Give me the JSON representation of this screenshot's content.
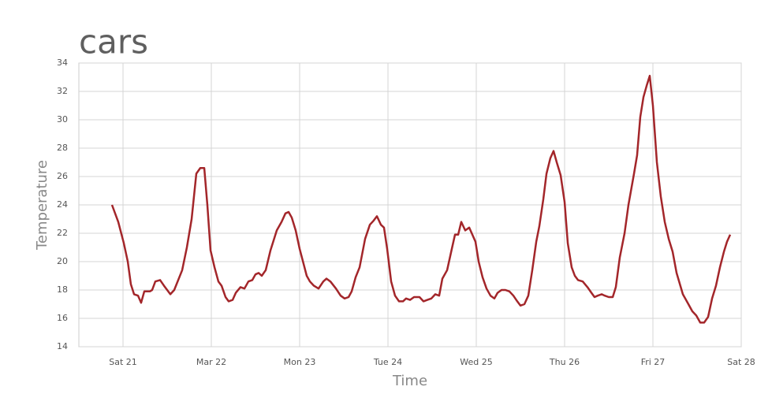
{
  "chart_data": {
    "type": "line",
    "title": "cars",
    "xlabel": "Time",
    "ylabel": "Temperature",
    "color": "#a3262a",
    "grid": true,
    "xlim": [
      20.5,
      28
    ],
    "ylim": [
      14,
      34
    ],
    "xticks": [
      {
        "value": 21,
        "label": "Sat 21"
      },
      {
        "value": 22,
        "label": "Mar 22"
      },
      {
        "value": 23,
        "label": "Mon 23"
      },
      {
        "value": 24,
        "label": "Tue 24"
      },
      {
        "value": 25,
        "label": "Wed 25"
      },
      {
        "value": 26,
        "label": "Thu 26"
      },
      {
        "value": 27,
        "label": "Fri 27"
      },
      {
        "value": 28,
        "label": "Sat 28"
      }
    ],
    "yticks": [
      14,
      16,
      18,
      20,
      22,
      24,
      26,
      28,
      30,
      32,
      34
    ],
    "x": [
      20.875,
      20.946,
      21.009,
      21.054,
      21.089,
      21.125,
      21.17,
      21.205,
      21.241,
      21.304,
      21.33,
      21.366,
      21.42,
      21.464,
      21.536,
      21.58,
      21.67,
      21.723,
      21.777,
      21.83,
      21.875,
      21.92,
      21.955,
      21.991,
      22.036,
      22.08,
      22.116,
      22.161,
      22.196,
      22.241,
      22.277,
      22.33,
      22.375,
      22.42,
      22.464,
      22.5,
      22.536,
      22.571,
      22.616,
      22.67,
      22.741,
      22.795,
      22.839,
      22.875,
      22.911,
      22.955,
      23.0,
      23.08,
      23.116,
      23.161,
      23.214,
      23.268,
      23.304,
      23.348,
      23.411,
      23.464,
      23.509,
      23.554,
      23.589,
      23.634,
      23.679,
      23.741,
      23.795,
      23.839,
      23.875,
      23.92,
      23.955,
      23.991,
      24.036,
      24.08,
      24.125,
      24.17,
      24.205,
      24.25,
      24.295,
      24.357,
      24.402,
      24.446,
      24.491,
      24.536,
      24.58,
      24.616,
      24.67,
      24.723,
      24.759,
      24.795,
      24.83,
      24.875,
      24.92,
      24.991,
      25.027,
      25.071,
      25.116,
      25.161,
      25.205,
      25.241,
      25.286,
      25.33,
      25.375,
      25.42,
      25.464,
      25.5,
      25.545,
      25.589,
      25.634,
      25.679,
      25.714,
      25.759,
      25.795,
      25.839,
      25.875,
      25.911,
      25.955,
      26.0,
      26.036,
      26.08,
      26.116,
      26.152,
      26.205,
      26.259,
      26.304,
      26.339,
      26.375,
      26.42,
      26.455,
      26.5,
      26.545,
      26.58,
      26.625,
      26.679,
      26.723,
      26.786,
      26.821,
      26.857,
      26.893,
      26.929,
      26.964,
      27.0,
      27.045,
      27.089,
      27.134,
      27.179,
      27.223,
      27.268,
      27.339,
      27.402,
      27.446,
      27.491,
      27.536,
      27.58,
      27.625,
      27.67,
      27.714,
      27.759,
      27.804,
      27.839,
      27.875
    ],
    "values": [
      24.0,
      22.8,
      21.3,
      20.0,
      18.4,
      17.7,
      17.6,
      17.1,
      17.9,
      17.9,
      18.0,
      18.6,
      18.7,
      18.3,
      17.7,
      18.0,
      19.4,
      21.0,
      23.0,
      26.2,
      26.6,
      26.6,
      24.0,
      20.8,
      19.6,
      18.6,
      18.3,
      17.5,
      17.2,
      17.3,
      17.8,
      18.2,
      18.1,
      18.6,
      18.7,
      19.1,
      19.2,
      19.0,
      19.4,
      20.8,
      22.2,
      22.8,
      23.4,
      23.5,
      23.1,
      22.2,
      20.9,
      19.0,
      18.6,
      18.3,
      18.1,
      18.6,
      18.8,
      18.6,
      18.1,
      17.6,
      17.4,
      17.5,
      17.9,
      18.9,
      19.6,
      21.6,
      22.6,
      22.9,
      23.2,
      22.6,
      22.4,
      20.9,
      18.6,
      17.6,
      17.2,
      17.2,
      17.4,
      17.3,
      17.5,
      17.5,
      17.2,
      17.3,
      17.4,
      17.7,
      17.6,
      18.8,
      19.4,
      20.9,
      21.9,
      21.9,
      22.8,
      22.2,
      22.4,
      21.4,
      20.0,
      18.9,
      18.1,
      17.6,
      17.4,
      17.8,
      18.0,
      18.0,
      17.9,
      17.6,
      17.2,
      16.9,
      17.0,
      17.6,
      19.4,
      21.4,
      22.5,
      24.4,
      26.2,
      27.3,
      27.8,
      27.0,
      26.1,
      24.2,
      21.3,
      19.6,
      19.0,
      18.7,
      18.6,
      18.2,
      17.8,
      17.5,
      17.6,
      17.7,
      17.6,
      17.5,
      17.5,
      18.2,
      20.3,
      22.0,
      24.0,
      26.2,
      27.5,
      30.2,
      31.6,
      32.4,
      33.1,
      31.0,
      27.0,
      24.6,
      22.8,
      21.6,
      20.7,
      19.2,
      17.7,
      17.0,
      16.5,
      16.2,
      15.7,
      15.7,
      16.1,
      17.4,
      18.3,
      19.6,
      20.7,
      21.4,
      21.9
    ]
  }
}
